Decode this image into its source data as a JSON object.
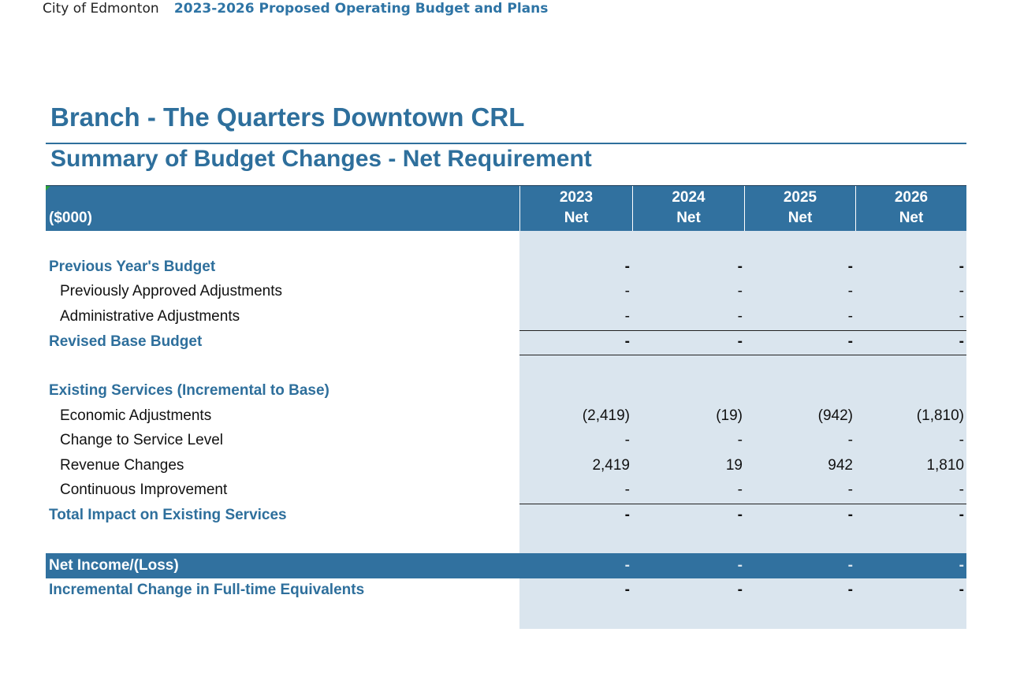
{
  "page_header": {
    "organization": "City of Edmonton",
    "document": "2023-2026 Proposed Operating Budget and Plans"
  },
  "branch_title": "Branch - The Quarters Downtown CRL",
  "section_title": "Summary of Budget Changes - Net Requirement",
  "table": {
    "unit_label": "($000)",
    "columns": [
      {
        "year": "2023",
        "sub": "Net"
      },
      {
        "year": "2024",
        "sub": "Net"
      },
      {
        "year": "2025",
        "sub": "Net"
      },
      {
        "year": "2026",
        "sub": "Net"
      }
    ],
    "rows": [
      {
        "label": "Previous Year's Budget",
        "values": [
          "-",
          "-",
          "-",
          "-"
        ]
      },
      {
        "label": "Previously Approved Adjustments",
        "values": [
          "-",
          "-",
          "-",
          "-"
        ]
      },
      {
        "label": "Administrative Adjustments",
        "values": [
          "-",
          "-",
          "-",
          "-"
        ]
      },
      {
        "label": "Revised Base Budget",
        "values": [
          "-",
          "-",
          "-",
          "-"
        ]
      },
      {
        "label": "Existing Services (Incremental to Base)",
        "values": [
          "",
          "",
          "",
          ""
        ]
      },
      {
        "label": "Economic Adjustments",
        "values": [
          "(2,419)",
          "(19)",
          "(942)",
          "(1,810)"
        ]
      },
      {
        "label": "Change to Service Level",
        "values": [
          "-",
          "-",
          "-",
          "-"
        ]
      },
      {
        "label": "Revenue Changes",
        "values": [
          "2,419",
          "19",
          "942",
          "1,810"
        ]
      },
      {
        "label": "Continuous Improvement",
        "values": [
          "-",
          "-",
          "-",
          "-"
        ]
      },
      {
        "label": "Total Impact on Existing Services",
        "values": [
          "-",
          "-",
          "-",
          "-"
        ]
      },
      {
        "label": "Net Income/(Loss)",
        "values": [
          "-",
          "-",
          "-",
          "-"
        ]
      },
      {
        "label": "Incremental Change in Full-time Equivalents",
        "values": [
          "-",
          "-",
          "-",
          "-"
        ]
      }
    ]
  },
  "colors": {
    "accent": "#2e6f9c",
    "header_fill": "#31719f",
    "value_shading": "#dae5ee"
  }
}
